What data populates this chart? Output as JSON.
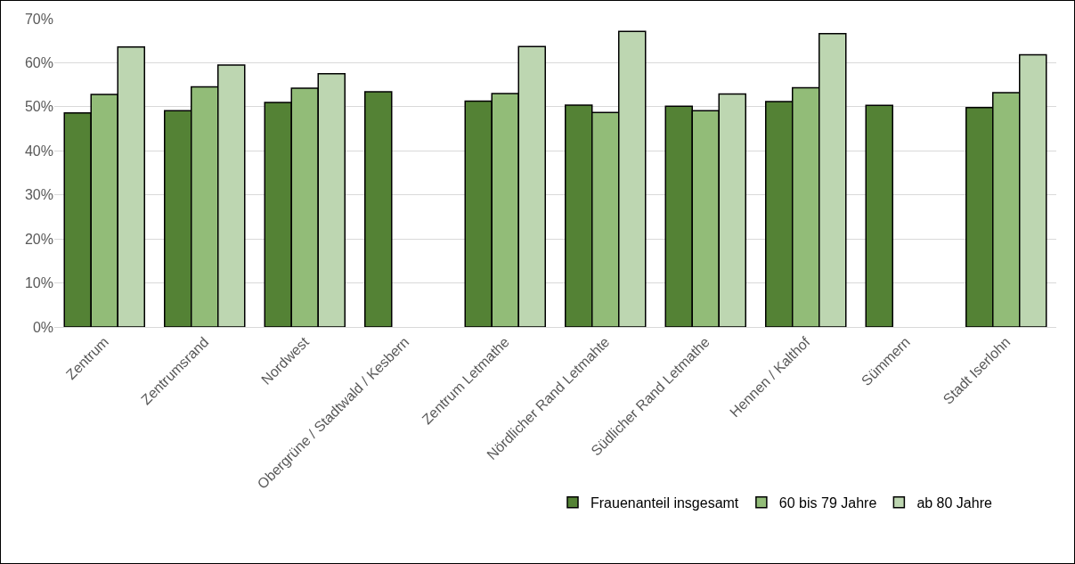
{
  "chart_data": {
    "type": "bar",
    "categories": [
      "Zentrum",
      "Zentrumsrand",
      "Nordwest",
      "Obergrüne / Stadtwald / Kesbern",
      "Zentrum Letmathe",
      "Nördlicher Rand Letmahte",
      "Südlicher Rand Letmathe",
      "Hennen / Kalthof",
      "Sümmern",
      "Stadt Iserlohn"
    ],
    "series": [
      {
        "name": "Frauenanteil insgesamt",
        "color": "#548235",
        "values": [
          48.6,
          49.1,
          51.0,
          53.4,
          51.3,
          50.4,
          50.1,
          51.2,
          50.3,
          49.8
        ]
      },
      {
        "name": "60 bis 79 Jahre",
        "color": "#92bc78",
        "values": [
          52.8,
          54.5,
          54.2,
          null,
          53.0,
          48.7,
          49.1,
          54.3,
          null,
          53.2
        ]
      },
      {
        "name": "ab 80 Jahre",
        "color": "#bdd6b1",
        "values": [
          63.6,
          59.5,
          57.5,
          null,
          63.7,
          67.1,
          52.9,
          66.6,
          null,
          61.8
        ]
      }
    ],
    "ylim": [
      0,
      70
    ],
    "yticks": [
      {
        "value": 0,
        "label": "0%"
      },
      {
        "value": 10,
        "label": "10%"
      },
      {
        "value": 20,
        "label": "20%"
      },
      {
        "value": 30,
        "label": "30%"
      },
      {
        "value": 40,
        "label": "40%"
      },
      {
        "value": 50,
        "label": "50%"
      },
      {
        "value": 60,
        "label": "60%"
      },
      {
        "value": 70,
        "label": "70%"
      }
    ],
    "grid": "y",
    "legend": "bottom"
  }
}
